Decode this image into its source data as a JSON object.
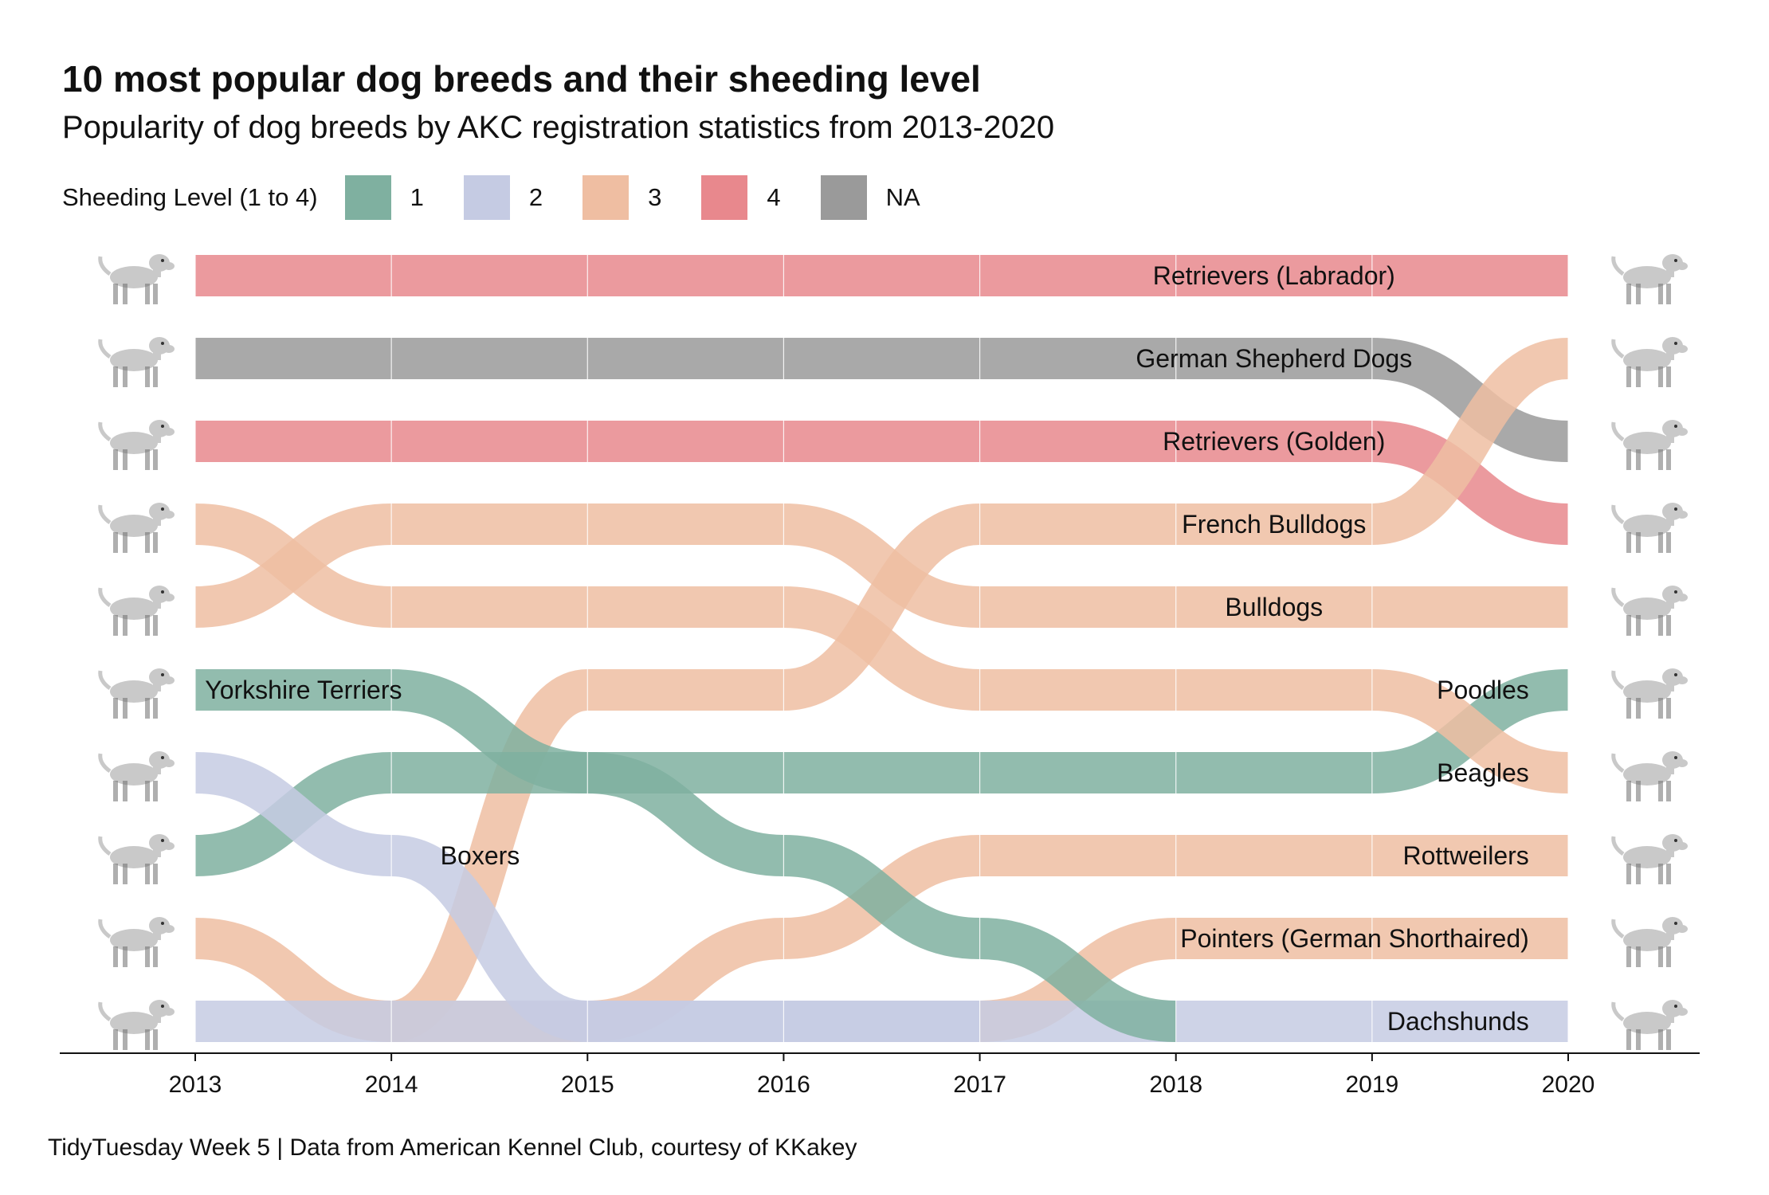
{
  "title": "10 most popular dog breeds and their sheeding level",
  "subtitle": "Popularity of dog breeds by AKC registration statistics from 2013-2020",
  "caption": "TidyTuesday Week 5 | Data from American Kennel Club, courtesy of KKakey",
  "legend": {
    "title": "Sheeding Level (1 to 4)",
    "items": [
      {
        "label": "1",
        "color": "#7fb0a0"
      },
      {
        "label": "2",
        "color": "#c5cbe3"
      },
      {
        "label": "3",
        "color": "#efbea2"
      },
      {
        "label": "4",
        "color": "#e8888d"
      },
      {
        "label": "NA",
        "color": "#9a9a9a"
      }
    ]
  },
  "chart_data": {
    "type": "bump",
    "x": [
      2013,
      2014,
      2015,
      2016,
      2017,
      2018,
      2019,
      2020
    ],
    "x_tick_labels": [
      "2013",
      "2014",
      "2015",
      "2016",
      "2017",
      "2018",
      "2019",
      "2020"
    ],
    "y_rank_range": [
      1,
      10
    ],
    "legend_position": "top",
    "grid": "vertical lines at each year",
    "series": [
      {
        "name": "Retrievers (Labrador)",
        "shedding": "4",
        "color": "#e8888d",
        "ranks": [
          1,
          1,
          1,
          1,
          1,
          1,
          1,
          1
        ]
      },
      {
        "name": "German Shepherd Dogs",
        "shedding": "NA",
        "color": "#9a9a9a",
        "ranks": [
          2,
          2,
          2,
          2,
          2,
          2,
          2,
          3
        ]
      },
      {
        "name": "Retrievers (Golden)",
        "shedding": "4",
        "color": "#e8888d",
        "ranks": [
          3,
          3,
          3,
          3,
          3,
          3,
          3,
          4
        ]
      },
      {
        "name": "French Bulldogs",
        "shedding": "3",
        "color": "#efbea2",
        "ranks": [
          null,
          10,
          6,
          6,
          4,
          4,
          4,
          2
        ]
      },
      {
        "name": "Bulldogs",
        "shedding": "3",
        "color": "#efbea2",
        "ranks": [
          5,
          4,
          4,
          4,
          5,
          5,
          5,
          5
        ]
      },
      {
        "name": "Poodles",
        "shedding": "1",
        "color": "#7fb0a0",
        "ranks": [
          8,
          7,
          7,
          7,
          7,
          7,
          7,
          6
        ]
      },
      {
        "name": "Beagles",
        "shedding": "3",
        "color": "#efbea2",
        "ranks": [
          4,
          5,
          5,
          5,
          6,
          6,
          6,
          7
        ]
      },
      {
        "name": "Rottweilers",
        "shedding": "3",
        "color": "#efbea2",
        "ranks": [
          9,
          10,
          10,
          9,
          8,
          8,
          8,
          8
        ]
      },
      {
        "name": "Pointers (German Shorthaired)",
        "shedding": "3",
        "color": "#efbea2",
        "ranks": [
          null,
          null,
          null,
          null,
          10,
          9,
          9,
          9
        ]
      },
      {
        "name": "Dachshunds",
        "shedding": "2",
        "color": "#c5cbe3",
        "ranks": [
          10,
          10,
          10,
          10,
          10,
          10,
          10,
          10
        ]
      },
      {
        "name": "Yorkshire Terriers",
        "shedding": "1",
        "color": "#7fb0a0",
        "ranks": [
          6,
          6,
          7,
          8,
          9,
          10,
          null,
          null
        ]
      },
      {
        "name": "Boxers",
        "shedding": "2",
        "color": "#c5cbe3",
        "ranks": [
          7,
          8,
          10,
          10,
          10,
          null,
          null,
          null
        ]
      }
    ],
    "labels": [
      {
        "text": "Retrievers (Labrador)",
        "x": 2018.5,
        "rank": 1,
        "anchor": "middle"
      },
      {
        "text": "German Shepherd Dogs",
        "x": 2018.5,
        "rank": 2,
        "anchor": "middle"
      },
      {
        "text": "Retrievers (Golden)",
        "x": 2018.5,
        "rank": 3,
        "anchor": "middle"
      },
      {
        "text": "French Bulldogs",
        "x": 2018.5,
        "rank": 4,
        "anchor": "middle"
      },
      {
        "text": "Bulldogs",
        "x": 2018.5,
        "rank": 5,
        "anchor": "middle"
      },
      {
        "text": "Yorkshire Terriers",
        "x": 2013.05,
        "rank": 6,
        "anchor": "start"
      },
      {
        "text": "Poodles",
        "x": 2019.8,
        "rank": 6,
        "anchor": "end"
      },
      {
        "text": "Beagles",
        "x": 2019.8,
        "rank": 7,
        "anchor": "end"
      },
      {
        "text": "Boxers",
        "x": 2014.25,
        "rank": 8,
        "anchor": "start"
      },
      {
        "text": "Rottweilers",
        "x": 2019.8,
        "rank": 8,
        "anchor": "end"
      },
      {
        "text": "Pointers (German Shorthaired)",
        "x": 2019.8,
        "rank": 9,
        "anchor": "end"
      },
      {
        "text": "Dachshunds",
        "x": 2019.8,
        "rank": 10,
        "anchor": "end"
      }
    ],
    "icons_left": [
      "retriever-labrador-icon",
      "german-shepherd-icon",
      "retriever-golden-icon",
      "beagle-icon",
      "bulldog-icon",
      "yorkshire-terrier-icon",
      "boxer-icon",
      "poodle-icon",
      "rottweiler-icon",
      "dachshund-icon"
    ],
    "icons_right": [
      "retriever-labrador-icon",
      "french-bulldog-icon",
      "german-shepherd-icon",
      "retriever-golden-icon",
      "bulldog-icon",
      "poodle-icon",
      "beagle-icon",
      "rottweiler-icon",
      "pointer-icon",
      "dachshund-icon"
    ]
  }
}
